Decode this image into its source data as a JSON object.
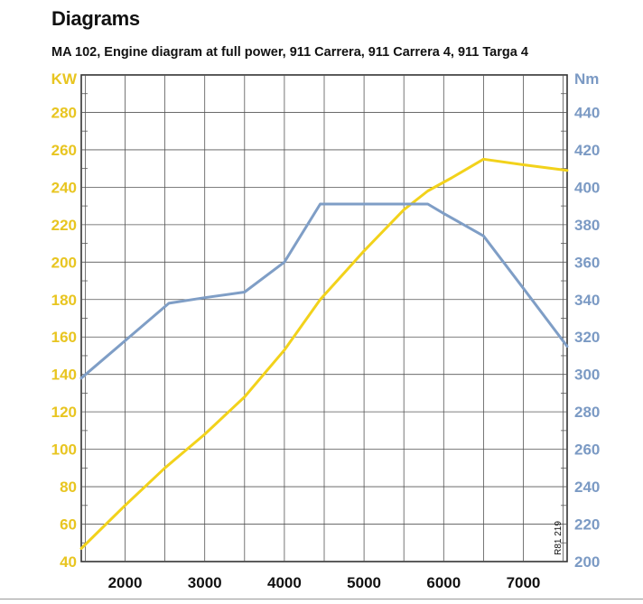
{
  "header": {
    "title": "Diagrams",
    "subtitle": "MA 102, Engine diagram at full power, 911 Carrera, 911 Carrera 4, 911 Targa 4"
  },
  "chart_data": {
    "type": "line",
    "left_axis_unit": "KW",
    "right_axis_unit": "Nm",
    "x_ticks": [
      2000,
      3000,
      4000,
      5000,
      6000,
      7000
    ],
    "left_ticks": [
      40,
      60,
      80,
      100,
      120,
      140,
      160,
      180,
      200,
      220,
      240,
      260,
      280
    ],
    "right_ticks": [
      200,
      220,
      240,
      260,
      280,
      300,
      320,
      340,
      360,
      380,
      400,
      420,
      440
    ],
    "xlim": [
      1450,
      7550
    ],
    "ylim_left": [
      40,
      300
    ],
    "ylim_right": [
      200,
      460
    ],
    "grid": true,
    "code": "R81 219",
    "colors": {
      "power": "#f2d21b",
      "torque": "#7f9ec6",
      "left_axis": "#e8c520",
      "right_axis": "#7b9ac4"
    },
    "series": [
      {
        "axis": "left",
        "x": [
          1450,
          2000,
          2500,
          3000,
          3500,
          4000,
          4450,
          5000,
          5500,
          5800,
          6100,
          6500,
          7000,
          7550
        ],
        "values": [
          47,
          70,
          90,
          108,
          128,
          153,
          180,
          206,
          228,
          238,
          245,
          255,
          252,
          249
        ]
      },
      {
        "axis": "right",
        "x": [
          1450,
          2000,
          2550,
          3000,
          3500,
          4000,
          4450,
          5000,
          5500,
          5800,
          6000,
          6500,
          7000,
          7550
        ],
        "values": [
          298,
          318,
          338,
          341,
          344,
          360,
          391,
          391,
          391,
          391,
          386,
          374,
          346,
          315
        ]
      }
    ]
  }
}
